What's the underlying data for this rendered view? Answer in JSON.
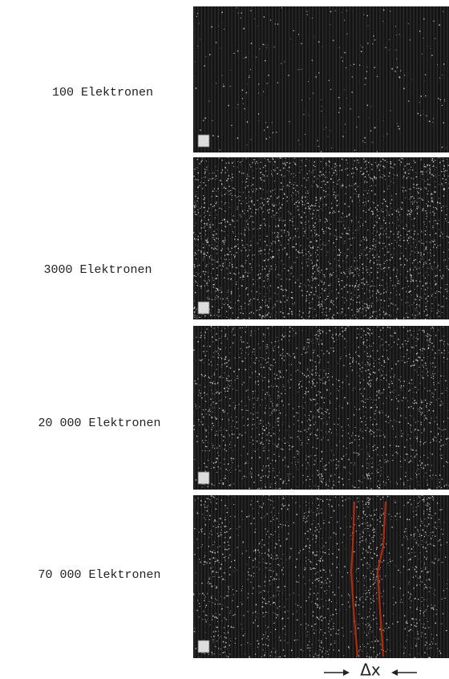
{
  "panels": [
    {
      "label": "100 Elektronen"
    },
    {
      "label": "3000 Elektronen"
    },
    {
      "label": "20 000 Elektronen"
    },
    {
      "label": "70 000 Elektronen"
    }
  ],
  "marker": {
    "label": "Δx"
  }
}
